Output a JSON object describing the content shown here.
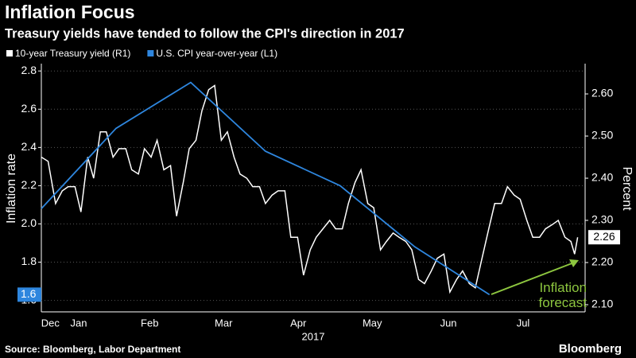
{
  "chart_data": {
    "type": "line",
    "title": "Inflation Focus",
    "subtitle": "Treasury yields have tended to follow the CPI's direction in 2017",
    "ylabel": "Inflation rate",
    "y2label": "Percent",
    "xlabel": "2017",
    "source": "Source: Bloomberg, Labor Department",
    "brand": "Bloomberg",
    "grid": true,
    "xlim": [
      0,
      7.28
    ],
    "xticks": [
      {
        "value": 0.12,
        "label": "Dec"
      },
      {
        "value": 0.5,
        "label": "Jan"
      },
      {
        "value": 1.45,
        "label": "Feb"
      },
      {
        "value": 2.44,
        "label": "Mar"
      },
      {
        "value": 3.44,
        "label": "Apr"
      },
      {
        "value": 4.43,
        "label": "May"
      },
      {
        "value": 5.45,
        "label": "Jun"
      },
      {
        "value": 6.45,
        "label": "Jul"
      }
    ],
    "ylim": [
      1.54,
      2.83
    ],
    "yticks": [
      1.6,
      1.8,
      {
        "value": 2,
        "label": "2.0"
      },
      2.2,
      2.4,
      2.6,
      2.8
    ],
    "y2lim": [
      2.083,
      2.668
    ],
    "y2ticks": [
      {
        "value": 2.1,
        "label": "2.10"
      },
      {
        "value": 2.2,
        "label": "2.20"
      },
      {
        "value": 2.3,
        "label": "2.30"
      },
      {
        "value": 2.4,
        "label": "2.40"
      },
      {
        "value": 2.5,
        "label": "2.50"
      },
      {
        "value": 2.6,
        "label": "2.60"
      }
    ],
    "annotation": {
      "text": "Inflation forecast",
      "color": "#8dc63f"
    },
    "series": [
      {
        "name": "10-year Treasury yield (R1)",
        "color": "#ffffff",
        "axis": "y2",
        "last_value_label": "2.26",
        "x": [
          0.0,
          0.09,
          0.19,
          0.28,
          0.36,
          0.45,
          0.53,
          0.62,
          0.7,
          0.79,
          0.87,
          0.96,
          1.04,
          1.13,
          1.21,
          1.3,
          1.38,
          1.47,
          1.55,
          1.64,
          1.73,
          1.81,
          1.9,
          1.98,
          2.07,
          2.15,
          2.24,
          2.32,
          2.41,
          2.49,
          2.58,
          2.66,
          2.75,
          2.83,
          2.92,
          3.0,
          3.09,
          3.17,
          3.26,
          3.34,
          3.43,
          3.51,
          3.6,
          3.68,
          3.77,
          3.86,
          3.94,
          4.03,
          4.11,
          4.2,
          4.28,
          4.37,
          4.45,
          4.54,
          4.62,
          4.71,
          4.79,
          4.88,
          4.96,
          5.05,
          5.13,
          5.22,
          5.3,
          5.39,
          5.47,
          5.56,
          5.64,
          5.73,
          5.81,
          5.9,
          5.99,
          6.07,
          6.16,
          6.24,
          6.33,
          6.41,
          6.5,
          6.58,
          6.67,
          6.75,
          6.84,
          6.92,
          7.01,
          7.09,
          7.14,
          7.18
        ],
        "values": [
          2.45,
          2.44,
          2.34,
          2.37,
          2.38,
          2.38,
          2.32,
          2.45,
          2.4,
          2.51,
          2.51,
          2.45,
          2.47,
          2.47,
          2.42,
          2.41,
          2.47,
          2.45,
          2.49,
          2.42,
          2.43,
          2.31,
          2.39,
          2.47,
          2.49,
          2.56,
          2.61,
          2.62,
          2.49,
          2.51,
          2.45,
          2.41,
          2.4,
          2.38,
          2.38,
          2.34,
          2.36,
          2.37,
          2.37,
          2.26,
          2.26,
          2.17,
          2.23,
          2.26,
          2.28,
          2.3,
          2.28,
          2.28,
          2.34,
          2.39,
          2.42,
          2.34,
          2.33,
          2.23,
          2.25,
          2.27,
          2.26,
          2.25,
          2.23,
          2.16,
          2.15,
          2.18,
          2.21,
          2.22,
          2.13,
          2.16,
          2.18,
          2.15,
          2.14,
          2.21,
          2.28,
          2.34,
          2.34,
          2.38,
          2.36,
          2.35,
          2.3,
          2.26,
          2.26,
          2.28,
          2.29,
          2.3,
          2.26,
          2.25,
          2.22,
          2.26
        ]
      },
      {
        "name": "U.S. CPI year-over-year (L1)",
        "color": "#2e86de",
        "axis": "y",
        "last_value_label": "1.6",
        "x": [
          0,
          1,
          2,
          3,
          4,
          5,
          6
        ],
        "values": [
          2.08,
          2.5,
          2.74,
          2.38,
          2.2,
          1.88,
          1.63
        ]
      }
    ]
  }
}
